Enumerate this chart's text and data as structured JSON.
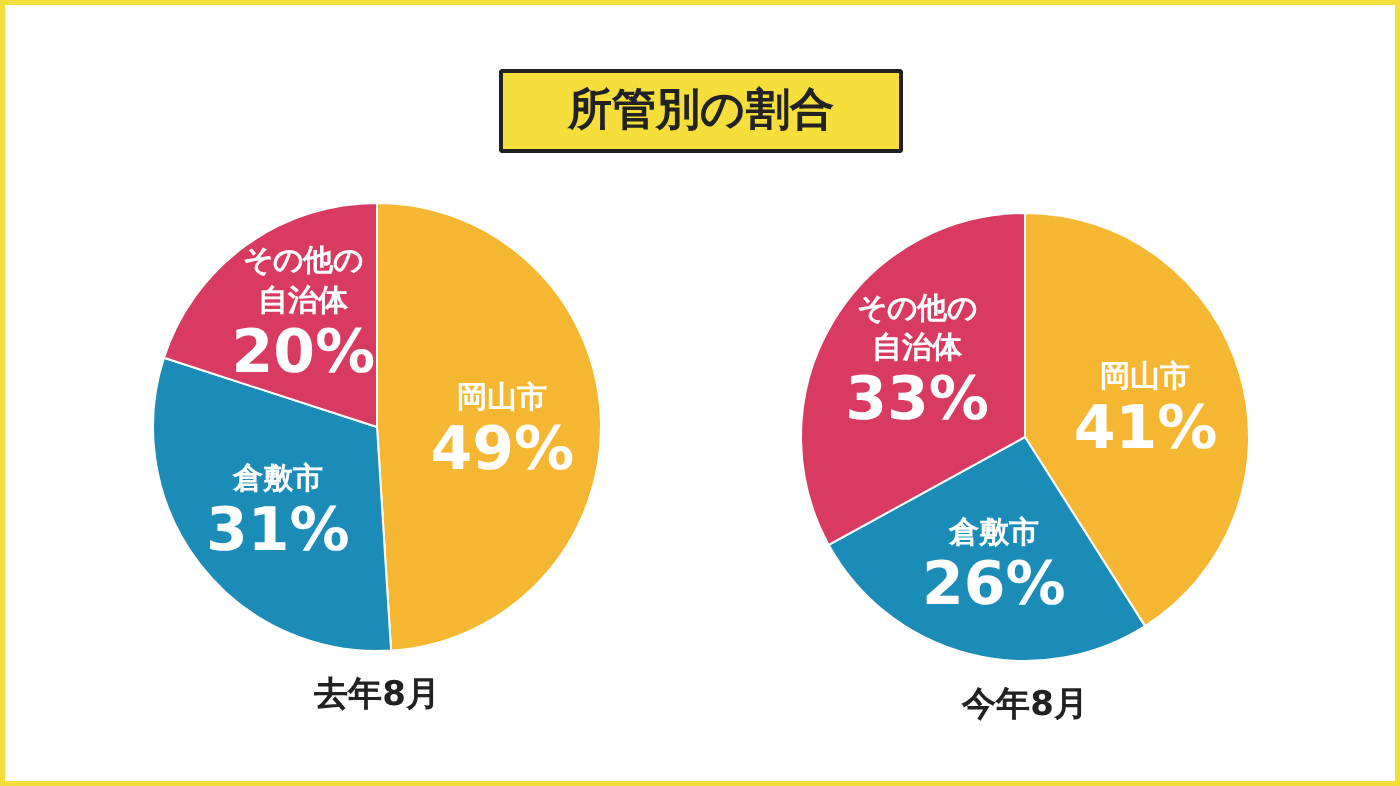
{
  "chart_data": [
    {
      "type": "pie",
      "title": "所管別の割合",
      "xlabel": "去年8月",
      "categories": [
        "岡山市",
        "倉敷市",
        "その他の自治体"
      ],
      "values": [
        49,
        31,
        20
      ],
      "value_labels": [
        "49%",
        "31%",
        "20%"
      ],
      "colors": [
        "#f5b731",
        "#1b8bb8",
        "#d93a62"
      ]
    },
    {
      "type": "pie",
      "xlabel": "今年8月",
      "categories": [
        "岡山市",
        "倉敷市",
        "その他の自治体"
      ],
      "values": [
        41,
        26,
        33
      ],
      "value_labels": [
        "41%",
        "26%",
        "33%"
      ],
      "colors": [
        "#f5b731",
        "#1b8bb8",
        "#d93a62"
      ]
    }
  ]
}
